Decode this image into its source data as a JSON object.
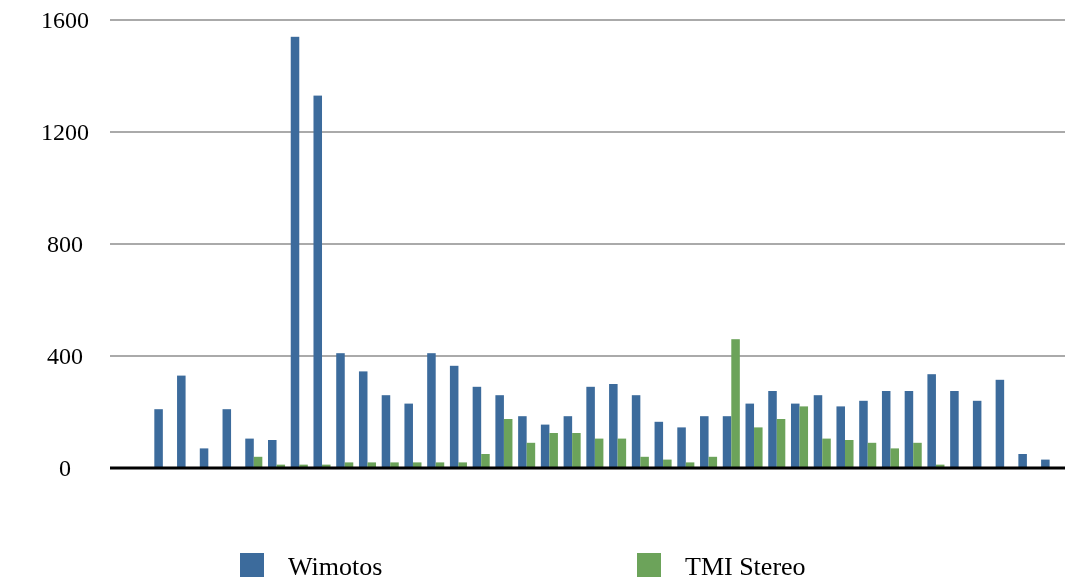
{
  "chart_data": {
    "type": "bar",
    "categories": [
      null,
      null,
      null,
      null,
      null,
      null,
      null,
      null,
      null,
      null,
      null,
      null,
      null,
      null,
      null,
      null,
      null,
      null,
      null,
      null,
      null,
      null,
      null,
      null,
      null,
      null,
      null,
      null,
      null,
      null,
      null,
      null,
      null,
      null,
      null,
      null,
      null,
      null,
      null,
      null,
      null,
      null
    ],
    "series": [
      {
        "name": "Wimotos",
        "color": "#3c6b9c",
        "values": [
          null,
          null,
          210,
          330,
          70,
          210,
          105,
          100,
          1540,
          1330,
          410,
          345,
          260,
          230,
          410,
          365,
          290,
          260,
          185,
          155,
          185,
          290,
          300,
          260,
          165,
          145,
          185,
          185,
          230,
          275,
          230,
          260,
          220,
          240,
          275,
          275,
          335,
          275,
          240,
          315,
          50,
          30
        ]
      },
      {
        "name": "TMI Stereo",
        "color": "#6ca35a",
        "values": [
          null,
          null,
          null,
          null,
          null,
          2,
          40,
          12,
          12,
          12,
          20,
          20,
          20,
          20,
          20,
          20,
          50,
          175,
          90,
          125,
          125,
          105,
          105,
          40,
          30,
          20,
          40,
          460,
          145,
          175,
          220,
          105,
          100,
          90,
          70,
          90,
          12,
          2,
          2,
          2,
          2,
          null
        ]
      }
    ],
    "ylim": [
      0,
      1600
    ],
    "yticks": [
      0,
      400,
      800,
      1200,
      1600
    ],
    "grid": "y",
    "legend": "bottom"
  }
}
